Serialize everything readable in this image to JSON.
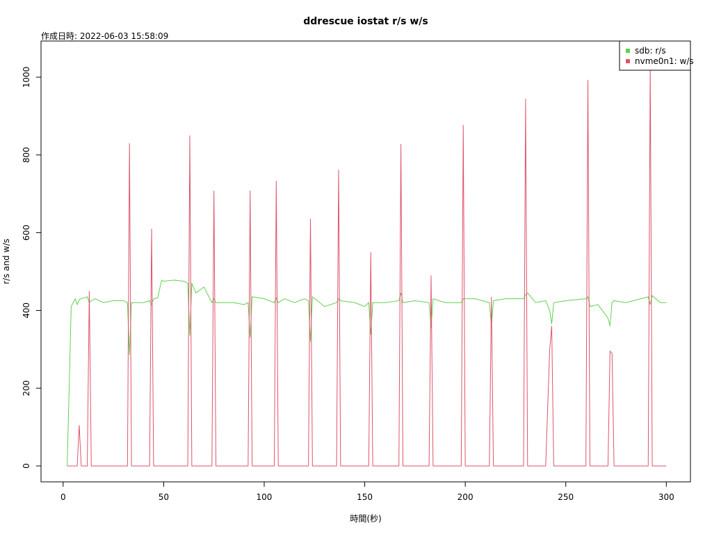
{
  "chart_data": {
    "type": "line",
    "title": "ddrescue iostat r/s w/s",
    "subtitle": "作成日時: 2022-06-03 15:58:09",
    "x_label": "時間(秒)",
    "y_label": "r/s and w/s",
    "x": [
      2,
      3,
      4,
      6,
      7,
      8,
      9,
      10,
      12,
      13,
      14,
      16,
      20,
      25,
      30,
      32,
      33,
      34,
      36,
      40,
      43,
      44,
      45,
      47,
      49,
      50,
      55,
      60,
      62,
      63,
      64,
      66,
      70,
      74,
      75,
      76,
      80,
      85,
      90,
      92,
      93,
      94,
      100,
      105,
      106,
      107,
      110,
      115,
      120,
      122,
      123,
      124,
      130,
      136,
      137,
      138,
      145,
      150,
      152,
      153,
      154,
      160,
      167,
      168,
      169,
      175,
      182,
      183,
      184,
      190,
      198,
      199,
      200,
      205,
      212,
      213,
      214,
      220,
      229,
      230,
      231,
      235,
      240,
      242,
      243,
      244,
      250,
      260,
      261,
      262,
      266,
      271,
      272,
      273,
      274,
      280,
      291,
      292,
      293,
      297,
      300
    ],
    "series": [
      {
        "name": "sdb: r/s",
        "color": "#61d04f",
        "values": [
          0,
          200,
          410,
          430,
          415,
          428,
          430,
          432,
          435,
          420,
          425,
          430,
          420,
          425,
          425,
          420,
          285,
          420,
          420,
          420,
          425,
          415,
          430,
          432,
          478,
          475,
          478,
          475,
          470,
          335,
          470,
          445,
          460,
          420,
          430,
          420,
          420,
          420,
          415,
          420,
          330,
          435,
          430,
          420,
          432,
          420,
          430,
          420,
          430,
          425,
          320,
          435,
          410,
          420,
          430,
          425,
          420,
          410,
          420,
          338,
          420,
          420,
          425,
          445,
          420,
          425,
          420,
          355,
          430,
          420,
          420,
          430,
          430,
          430,
          420,
          360,
          425,
          430,
          430,
          440,
          445,
          420,
          425,
          400,
          365,
          420,
          425,
          430,
          435,
          410,
          415,
          380,
          360,
          420,
          425,
          420,
          435,
          415,
          438,
          420,
          420
        ]
      },
      {
        "name": "nvme0n1: w/s",
        "color": "#df536b",
        "values": [
          0,
          0,
          0,
          0,
          0,
          105,
          0,
          0,
          0,
          450,
          0,
          0,
          0,
          0,
          0,
          0,
          830,
          0,
          0,
          0,
          0,
          610,
          0,
          0,
          0,
          0,
          0,
          0,
          0,
          850,
          0,
          0,
          0,
          0,
          708,
          0,
          0,
          0,
          0,
          0,
          708,
          0,
          0,
          0,
          733,
          0,
          0,
          0,
          0,
          0,
          636,
          0,
          0,
          0,
          762,
          0,
          0,
          0,
          0,
          550,
          0,
          0,
          0,
          828,
          0,
          0,
          0,
          490,
          0,
          0,
          0,
          877,
          0,
          0,
          0,
          435,
          0,
          0,
          0,
          944,
          0,
          0,
          0,
          300,
          360,
          0,
          0,
          0,
          993,
          0,
          0,
          0,
          295,
          290,
          0,
          0,
          0,
          1030,
          0,
          0,
          0
        ]
      }
    ],
    "xlim": [
      -11,
      312
    ],
    "ylim": [
      -41,
      1093
    ],
    "xticks": [
      0,
      50,
      100,
      150,
      200,
      250,
      300
    ],
    "yticks": [
      0,
      200,
      400,
      600,
      800,
      1000
    ],
    "legend": "top-right",
    "grid": false
  }
}
